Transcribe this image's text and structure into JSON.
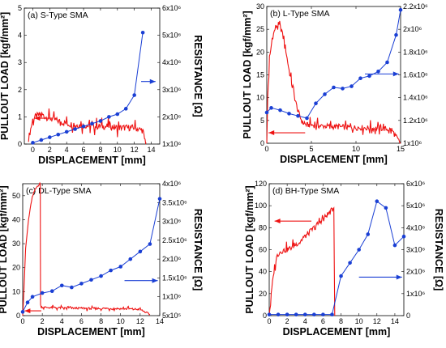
{
  "chart_data": [
    {
      "type": "line",
      "title": "(a) S-Type SMA",
      "xlabel": "DISPLACEMENT [mm]",
      "ylabel_left": "PULLOUT LOAD [kgf/mm²]",
      "ylabel_right": "RESISTANCE [Ω]",
      "xlim": [
        -1,
        15
      ],
      "ylim_left": [
        0,
        5
      ],
      "ylim_right": [
        1,
        6
      ],
      "xticks": [
        "0",
        "2",
        "4",
        "6",
        "8",
        "10",
        "12",
        "14"
      ],
      "xtick_values": [
        0,
        2,
        4,
        6,
        8,
        10,
        12,
        14
      ],
      "yticks_left": [
        "0",
        "1",
        "2",
        "3",
        "4",
        "5"
      ],
      "ytick_values_left": [
        0,
        1,
        2,
        3,
        4,
        5
      ],
      "yticks_right": [
        "1x10⁶",
        "2x10⁶",
        "3x10⁶",
        "4x10⁶",
        "5x10⁶",
        "6x10⁶"
      ],
      "ytick_values_right": [
        1,
        2,
        3,
        4,
        5,
        6
      ],
      "right_scale_note": "x10^6 Ω",
      "series": [
        {
          "axis": "left",
          "color": "#ee1111",
          "x": [
            -0.5,
            0,
            0.3,
            0.6,
            1.0,
            1.5,
            2.0,
            2.5,
            3.0,
            3.5,
            4.0,
            5.0,
            6.0,
            7.0,
            8.0,
            9.0,
            10.0,
            11.0,
            12.0,
            12.5,
            13.0,
            13.2,
            13.4
          ],
          "y": [
            0.2,
            0.9,
            1.0,
            1.05,
            1.1,
            1.0,
            0.95,
            0.9,
            0.85,
            0.8,
            0.75,
            0.7,
            0.7,
            0.65,
            0.65,
            0.65,
            0.6,
            0.6,
            0.6,
            0.55,
            0.5,
            0.2,
            0.05
          ],
          "noise": 0.12
        },
        {
          "axis": "right",
          "color": "#1a3fd4",
          "marker": "circle",
          "x": [
            0,
            1,
            2,
            3,
            4,
            5,
            6,
            7,
            8,
            9,
            10,
            11,
            12,
            13
          ],
          "y": [
            1.05,
            1.15,
            1.25,
            1.35,
            1.45,
            1.55,
            1.65,
            1.75,
            1.85,
            2.0,
            2.1,
            2.3,
            2.8,
            5.1
          ]
        }
      ],
      "arrows": [
        {
          "axis": "left",
          "x1": 0.2,
          "x2": 2.3,
          "y": 0.95,
          "color": "#ee1111",
          "head": "start"
        },
        {
          "axis": "left",
          "x1": 12.8,
          "x2": 14.5,
          "y": 2.3,
          "color": "#1a3fd4",
          "head": "end"
        }
      ]
    },
    {
      "type": "line",
      "title": "(b) L-Type SMA",
      "xlabel": "DISPLACEMENT [mm]",
      "ylabel_left": "PULLOUT LOAD [kgf/mm²]",
      "ylabel_right": "",
      "xlim": [
        0,
        15
      ],
      "ylim_left": [
        0,
        30
      ],
      "ylim_right": [
        1.0,
        2.2
      ],
      "xticks": [
        "0",
        "5",
        "10",
        "15"
      ],
      "xtick_values": [
        0,
        5,
        10,
        15
      ],
      "yticks_left": [
        "0",
        "5",
        "10",
        "15",
        "20",
        "25",
        "30"
      ],
      "ytick_values_left": [
        0,
        5,
        10,
        15,
        20,
        25,
        30
      ],
      "yticks_right": [
        "1x10⁶",
        "1.2x10⁶",
        "1.4x10⁶",
        "1.6x10⁶",
        "1.8x10⁶",
        "2x10⁶",
        "2.2x10⁶"
      ],
      "ytick_values_right": [
        1.0,
        1.2,
        1.4,
        1.6,
        1.8,
        2.0,
        2.2
      ],
      "right_scale_note": "x10^6 Ω",
      "series": [
        {
          "axis": "left",
          "color": "#ee1111",
          "x": [
            0,
            0.1,
            0.3,
            0.6,
            1.0,
            1.3,
            1.6,
            2.0,
            2.5,
            3.0,
            3.5,
            4.0,
            4.5,
            5.0,
            6.0,
            7.0,
            8.0,
            9.0,
            10.0,
            11.0,
            12.0,
            13.0,
            14.0,
            14.3,
            14.8,
            15.0
          ],
          "y": [
            0,
            10,
            18,
            23,
            25.5,
            26,
            25,
            22,
            16,
            11,
            7,
            4.5,
            4,
            4,
            3.8,
            3.7,
            3.6,
            3.5,
            3.4,
            3.4,
            3.3,
            3.2,
            3.0,
            2.0,
            0.5,
            0
          ],
          "noise": 0.6
        },
        {
          "axis": "right",
          "color": "#1a3fd4",
          "marker": "circle",
          "x": [
            0,
            0.5,
            1.5,
            2.5,
            3.5,
            4.5,
            5.5,
            6.5,
            7.5,
            8.5,
            9.5,
            10.5,
            11.5,
            12.5,
            13.5,
            14.5,
            15
          ],
          "y": [
            1.27,
            1.31,
            1.29,
            1.26,
            1.24,
            1.22,
            1.35,
            1.43,
            1.49,
            1.48,
            1.5,
            1.57,
            1.59,
            1.63,
            1.71,
            1.95,
            2.17
          ]
        }
      ],
      "arrows": [
        {
          "axis": "left",
          "x1": 0.2,
          "x2": 4.3,
          "y": 2.3,
          "color": "#ee1111",
          "head": "start"
        },
        {
          "axis": "left",
          "x1": 11.0,
          "x2": 14.8,
          "y": 15.2,
          "color": "#1a3fd4",
          "head": "end"
        }
      ]
    },
    {
      "type": "line",
      "title": "(c) DL-Type SMA",
      "xlabel": "DISPLACEMENT [mm]",
      "ylabel_left": "PULLOUT LOAD [kgf/mm²]",
      "ylabel_right": "RESISTANCE [Ω]",
      "xlim": [
        0,
        14
      ],
      "ylim_left": [
        0,
        55
      ],
      "ylim_right": [
        0.5,
        4.0
      ],
      "xticks": [
        "0",
        "2",
        "4",
        "6",
        "8",
        "10",
        "12",
        "14"
      ],
      "xtick_values": [
        0,
        2,
        4,
        6,
        8,
        10,
        12,
        14
      ],
      "yticks_left": [
        "0",
        "10",
        "20",
        "30",
        "40",
        "50"
      ],
      "ytick_values_left": [
        0,
        10,
        20,
        30,
        40,
        50
      ],
      "yticks_right": [
        "5x10⁵",
        "1x10⁶",
        "1.5x10⁶",
        "2x10⁶",
        "2.5x10⁶",
        "3x10⁶",
        "3.5x10⁶",
        "4x10⁶"
      ],
      "ytick_values_right": [
        0.5,
        1.0,
        1.5,
        2.0,
        2.5,
        3.0,
        3.5,
        4.0
      ],
      "right_scale_note": "x10^6 Ω",
      "series": [
        {
          "axis": "left",
          "color": "#ee1111",
          "x": [
            0,
            0.1,
            0.3,
            0.6,
            0.9,
            1.2,
            1.5,
            1.75,
            1.8,
            1.82,
            2.0,
            3.0,
            4.0,
            5.0,
            6.0,
            7.0,
            8.0,
            9.0,
            10.0,
            11.0,
            12.0,
            12.5,
            13.0
          ],
          "y": [
            0,
            8,
            28,
            40,
            48,
            52,
            54,
            55,
            55,
            4,
            3.5,
            3.3,
            3.2,
            3.1,
            3.1,
            3.0,
            3.0,
            3.0,
            2.9,
            2.8,
            2.6,
            1.5,
            0.5
          ],
          "noise": 0.4
        },
        {
          "axis": "right",
          "color": "#1a3fd4",
          "marker": "circle",
          "x": [
            0,
            0.5,
            1.0,
            2.0,
            3.0,
            4.0,
            5.0,
            6.0,
            7.0,
            8.0,
            9.0,
            10.0,
            11.0,
            12.0,
            13.0,
            14.0
          ],
          "y": [
            0.6,
            0.85,
            1.0,
            1.1,
            1.15,
            1.3,
            1.25,
            1.35,
            1.45,
            1.55,
            1.7,
            1.8,
            2.0,
            2.2,
            2.4,
            3.6
          ]
        }
      ],
      "arrows": [
        {
          "axis": "left",
          "x1": 0.2,
          "x2": 1.9,
          "y": 2.0,
          "color": "#ee1111",
          "head": "start"
        },
        {
          "axis": "left",
          "x1": 10.4,
          "x2": 13.8,
          "y": 14.6,
          "color": "#1a3fd4",
          "head": "end"
        }
      ]
    },
    {
      "type": "line",
      "title": "(d) BH-Type SMA",
      "xlabel": "DISPLACEMENT [mm]",
      "ylabel_left": "PULLOUT LOAD [kgf/mm²]",
      "ylabel_right": "RESISTANCE [Ω]",
      "xlim": [
        0,
        15
      ],
      "ylim_left": [
        0,
        120
      ],
      "ylim_right": [
        0,
        6
      ],
      "xticks": [
        "0",
        "2",
        "4",
        "6",
        "8",
        "10",
        "12",
        "14"
      ],
      "xtick_values": [
        0,
        2,
        4,
        6,
        8,
        10,
        12,
        14
      ],
      "yticks_left": [
        "0",
        "20",
        "40",
        "60",
        "80",
        "100",
        "120"
      ],
      "ytick_values_left": [
        0,
        20,
        40,
        60,
        80,
        100,
        120
      ],
      "yticks_right": [
        "0",
        "1x10⁶",
        "2x10⁶",
        "3x10⁶",
        "4x10⁶",
        "5x10⁶",
        "6x10⁶"
      ],
      "ytick_values_right": [
        0,
        1,
        2,
        3,
        4,
        5,
        6
      ],
      "right_scale_note": "x10^6 Ω",
      "series": [
        {
          "axis": "left",
          "color": "#ee1111",
          "x": [
            0,
            0.3,
            0.6,
            0.9,
            1.2,
            1.5,
            2.0,
            2.5,
            3.0,
            3.5,
            4.0,
            4.5,
            5.0,
            5.5,
            6.0,
            6.5,
            7.0,
            7.2,
            7.3
          ],
          "y": [
            0,
            25,
            45,
            55,
            58,
            59,
            60,
            62,
            65,
            68,
            72,
            76,
            80,
            84,
            88,
            92,
            96,
            98,
            0
          ],
          "noise": 2.5
        },
        {
          "axis": "right",
          "color": "#1a3fd4",
          "marker": "circle",
          "x": [
            0,
            1,
            2,
            3,
            4,
            5,
            6,
            7,
            8,
            9,
            10,
            11,
            12,
            13,
            14,
            15
          ],
          "y": [
            0.05,
            0.05,
            0.05,
            0.05,
            0.05,
            0.05,
            0.05,
            0.05,
            1.8,
            2.4,
            3.0,
            3.7,
            5.2,
            4.9,
            3.2,
            3.6
          ]
        }
      ],
      "arrows": [
        {
          "axis": "left",
          "x1": 0.6,
          "x2": 4.7,
          "y": 86,
          "color": "#ee1111",
          "head": "start"
        },
        {
          "axis": "left",
          "x1": 10.0,
          "x2": 14.8,
          "y": 35,
          "color": "#1a3fd4",
          "head": "end"
        }
      ]
    }
  ]
}
